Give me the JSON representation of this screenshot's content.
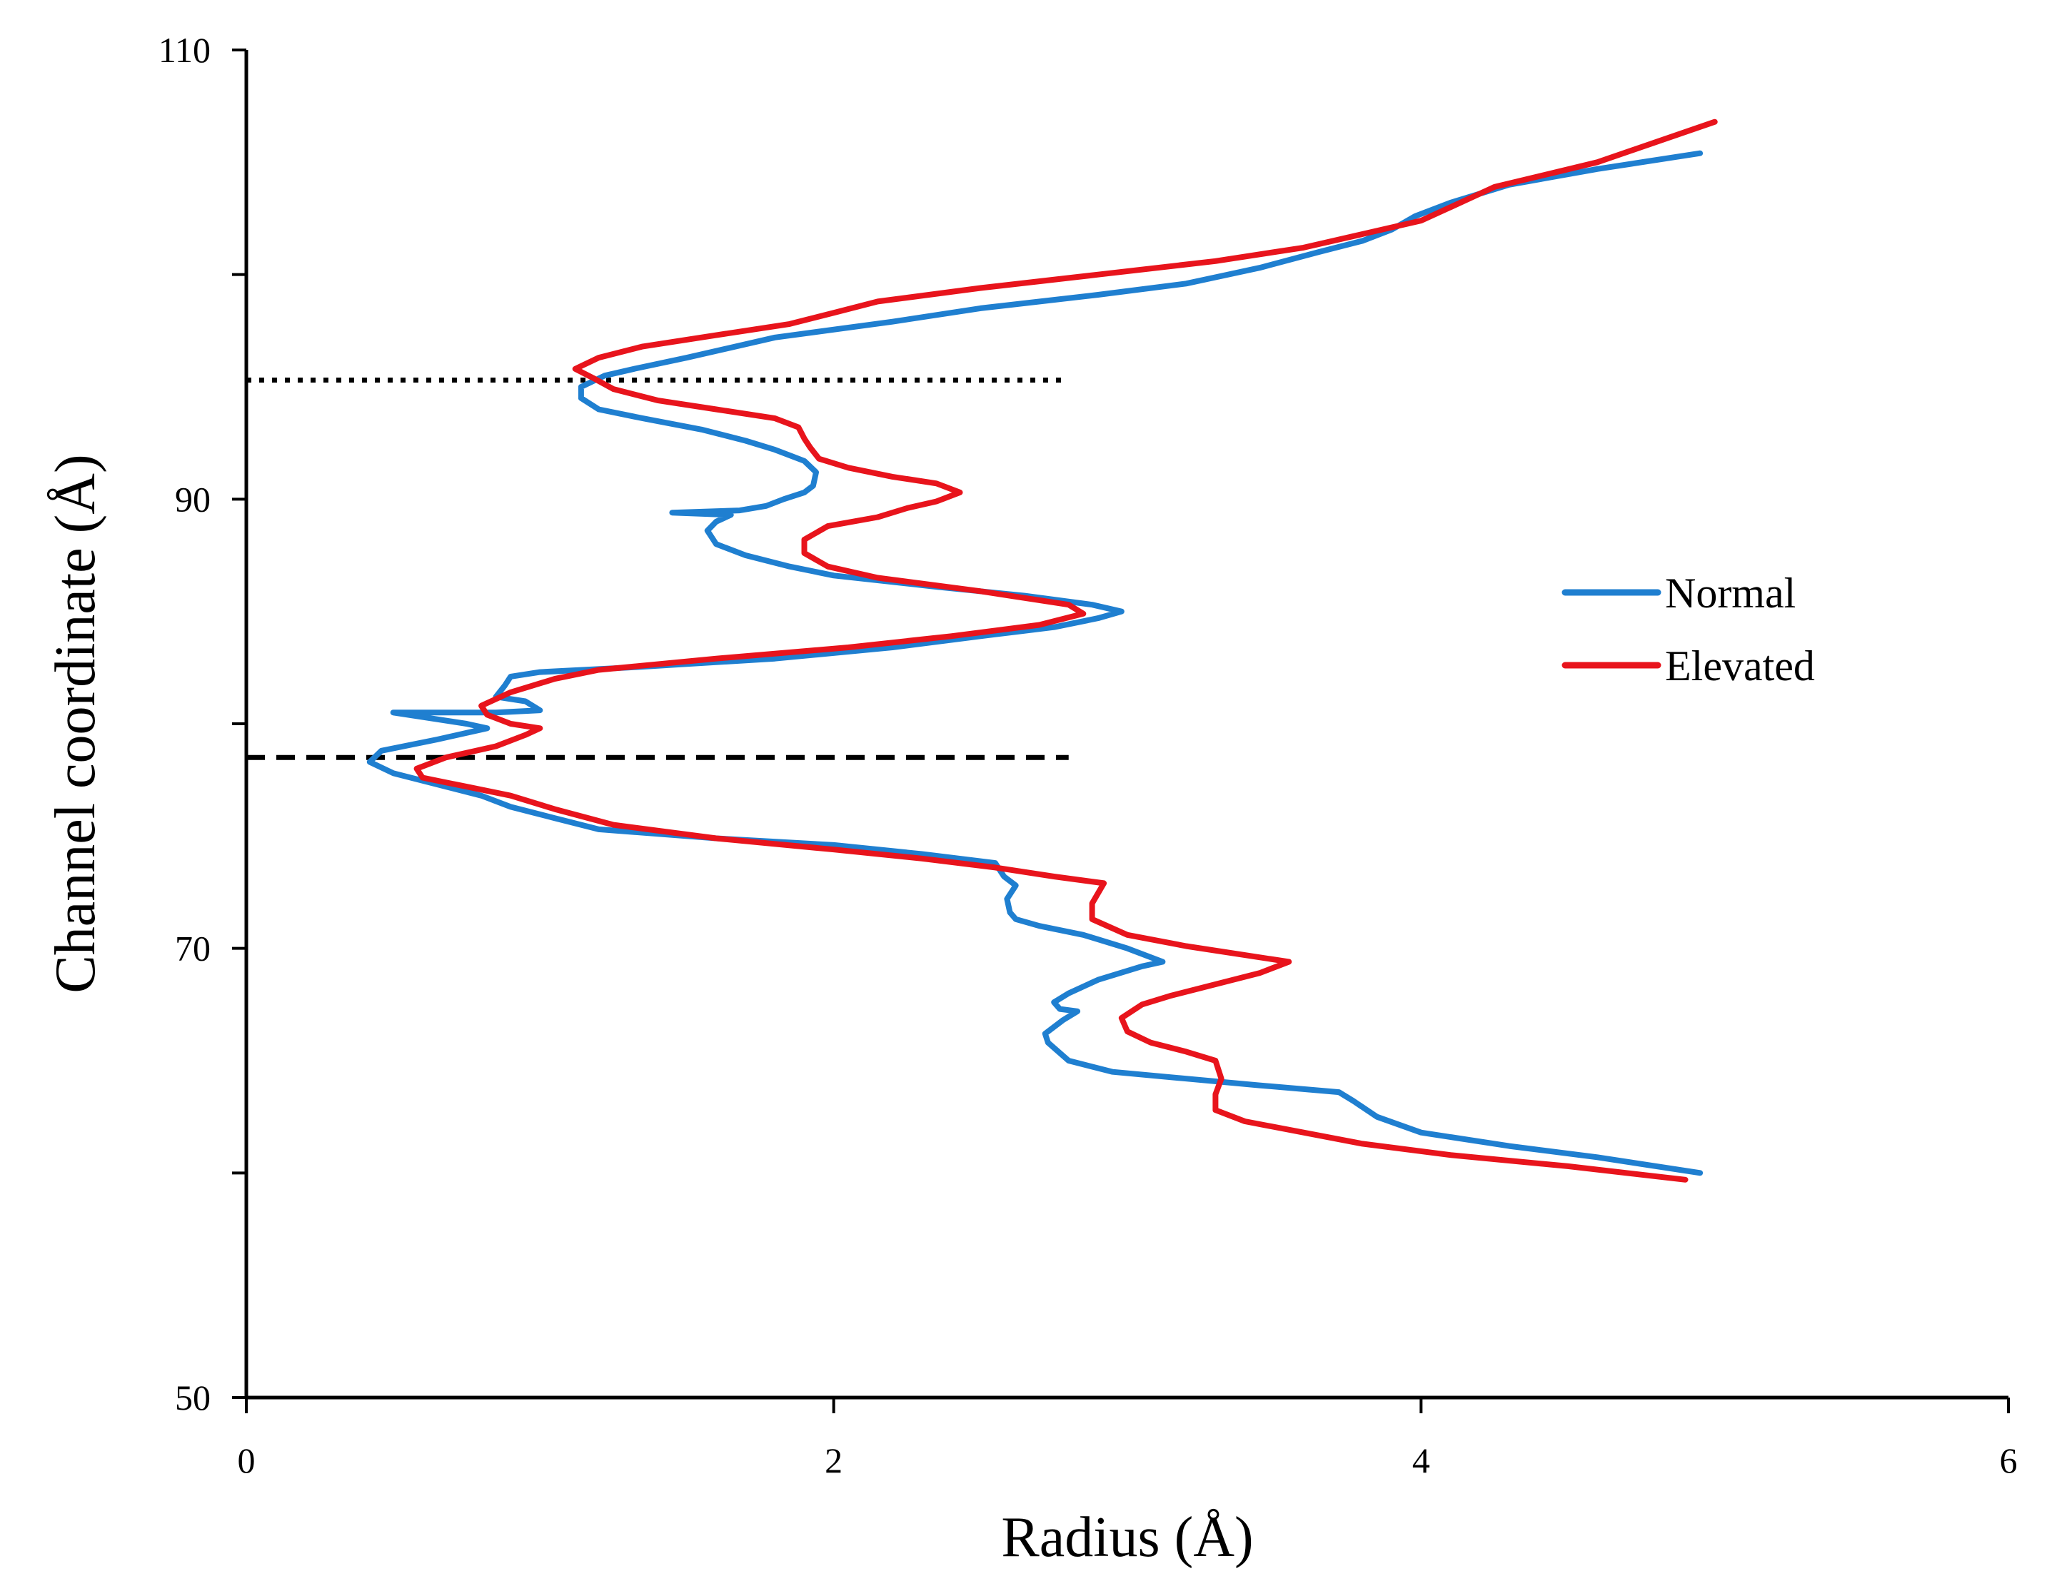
{
  "chart_data": {
    "type": "line",
    "title": "",
    "xlabel": "Radius (Å)",
    "ylabel": "Channel coordinate (Å)",
    "xlim": [
      0,
      6
    ],
    "ylim": [
      50,
      110
    ],
    "x_ticks": [
      0,
      2,
      4,
      6
    ],
    "y_ticks_labeled": [
      50,
      70,
      90,
      110
    ],
    "y_ticks_minor": [
      60,
      80,
      100
    ],
    "grid": false,
    "legend_position": "right",
    "reference_lines": [
      {
        "name": "dotted-reference-line",
        "style": "dotted",
        "y": 95.3,
        "x_range": [
          0,
          2.8
        ]
      },
      {
        "name": "dashed-reference-line",
        "style": "dashed",
        "y": 78.5,
        "x_range": [
          0,
          2.8
        ]
      }
    ],
    "series": [
      {
        "name": "Normal",
        "color": "#1f7fd0",
        "points": [
          [
            4.95,
            60.0
          ],
          [
            4.6,
            60.7
          ],
          [
            4.3,
            61.2
          ],
          [
            4.0,
            61.8
          ],
          [
            3.85,
            62.5
          ],
          [
            3.77,
            63.2
          ],
          [
            3.72,
            63.6
          ],
          [
            3.45,
            63.9
          ],
          [
            3.2,
            64.2
          ],
          [
            2.95,
            64.5
          ],
          [
            2.8,
            65.0
          ],
          [
            2.73,
            65.8
          ],
          [
            2.72,
            66.2
          ],
          [
            2.78,
            66.8
          ],
          [
            2.83,
            67.2
          ],
          [
            2.77,
            67.3
          ],
          [
            2.75,
            67.6
          ],
          [
            2.8,
            68.0
          ],
          [
            2.9,
            68.6
          ],
          [
            3.05,
            69.2
          ],
          [
            3.12,
            69.4
          ],
          [
            3.0,
            70.0
          ],
          [
            2.85,
            70.6
          ],
          [
            2.7,
            71.0
          ],
          [
            2.62,
            71.3
          ],
          [
            2.6,
            71.6
          ],
          [
            2.59,
            72.2
          ],
          [
            2.62,
            72.8
          ],
          [
            2.58,
            73.2
          ],
          [
            2.55,
            73.8
          ],
          [
            2.3,
            74.2
          ],
          [
            2.0,
            74.6
          ],
          [
            1.6,
            74.9
          ],
          [
            1.2,
            75.3
          ],
          [
            1.05,
            75.8
          ],
          [
            0.9,
            76.3
          ],
          [
            0.8,
            76.8
          ],
          [
            0.65,
            77.3
          ],
          [
            0.5,
            77.8
          ],
          [
            0.42,
            78.3
          ],
          [
            0.46,
            78.8
          ],
          [
            0.65,
            79.3
          ],
          [
            0.82,
            79.8
          ],
          [
            0.75,
            80.0
          ],
          [
            0.6,
            80.3
          ],
          [
            0.5,
            80.5
          ],
          [
            0.85,
            80.5
          ],
          [
            1.0,
            80.6
          ],
          [
            0.95,
            81.0
          ],
          [
            0.85,
            81.2
          ],
          [
            0.88,
            81.7
          ],
          [
            0.9,
            82.1
          ],
          [
            1.0,
            82.3
          ],
          [
            1.3,
            82.5
          ],
          [
            1.8,
            82.9
          ],
          [
            2.2,
            83.4
          ],
          [
            2.5,
            83.9
          ],
          [
            2.75,
            84.3
          ],
          [
            2.9,
            84.7
          ],
          [
            2.98,
            85.0
          ],
          [
            2.88,
            85.3
          ],
          [
            2.65,
            85.7
          ],
          [
            2.35,
            86.1
          ],
          [
            2.0,
            86.6
          ],
          [
            1.85,
            87.0
          ],
          [
            1.7,
            87.5
          ],
          [
            1.6,
            88.0
          ],
          [
            1.57,
            88.6
          ],
          [
            1.6,
            89.0
          ],
          [
            1.65,
            89.3
          ],
          [
            1.45,
            89.4
          ],
          [
            1.68,
            89.5
          ],
          [
            1.77,
            89.7
          ],
          [
            1.83,
            90.0
          ],
          [
            1.9,
            90.3
          ],
          [
            1.93,
            90.6
          ],
          [
            1.94,
            91.2
          ],
          [
            1.9,
            91.7
          ],
          [
            1.8,
            92.2
          ],
          [
            1.7,
            92.6
          ],
          [
            1.55,
            93.1
          ],
          [
            1.35,
            93.6
          ],
          [
            1.2,
            94.0
          ],
          [
            1.14,
            94.5
          ],
          [
            1.14,
            95.0
          ],
          [
            1.22,
            95.5
          ],
          [
            1.32,
            95.8
          ],
          [
            1.5,
            96.3
          ],
          [
            1.8,
            97.2
          ],
          [
            2.2,
            97.9
          ],
          [
            2.5,
            98.5
          ],
          [
            2.9,
            99.1
          ],
          [
            3.2,
            99.6
          ],
          [
            3.45,
            100.3
          ],
          [
            3.65,
            101.0
          ],
          [
            3.8,
            101.5
          ],
          [
            3.9,
            102.0
          ],
          [
            3.98,
            102.6
          ],
          [
            4.1,
            103.2
          ],
          [
            4.3,
            104.0
          ],
          [
            4.6,
            104.7
          ],
          [
            4.95,
            105.4
          ]
        ]
      },
      {
        "name": "Elevated",
        "color": "#e8141c",
        "points": [
          [
            4.9,
            59.7
          ],
          [
            4.5,
            60.3
          ],
          [
            4.1,
            60.8
          ],
          [
            3.8,
            61.3
          ],
          [
            3.6,
            61.8
          ],
          [
            3.4,
            62.3
          ],
          [
            3.3,
            62.8
          ],
          [
            3.3,
            63.5
          ],
          [
            3.32,
            64.2
          ],
          [
            3.3,
            65.0
          ],
          [
            3.2,
            65.4
          ],
          [
            3.08,
            65.8
          ],
          [
            3.0,
            66.3
          ],
          [
            2.98,
            66.9
          ],
          [
            3.05,
            67.5
          ],
          [
            3.15,
            67.9
          ],
          [
            3.3,
            68.4
          ],
          [
            3.45,
            68.9
          ],
          [
            3.55,
            69.4
          ],
          [
            3.4,
            69.7
          ],
          [
            3.2,
            70.1
          ],
          [
            3.0,
            70.6
          ],
          [
            2.88,
            71.3
          ],
          [
            2.88,
            72.0
          ],
          [
            2.92,
            72.9
          ],
          [
            2.75,
            73.2
          ],
          [
            2.55,
            73.6
          ],
          [
            2.3,
            74.0
          ],
          [
            2.0,
            74.4
          ],
          [
            1.6,
            74.9
          ],
          [
            1.25,
            75.5
          ],
          [
            1.05,
            76.2
          ],
          [
            0.9,
            76.8
          ],
          [
            0.75,
            77.2
          ],
          [
            0.6,
            77.6
          ],
          [
            0.58,
            78.0
          ],
          [
            0.68,
            78.5
          ],
          [
            0.85,
            79.0
          ],
          [
            0.95,
            79.5
          ],
          [
            1.0,
            79.8
          ],
          [
            0.9,
            80.0
          ],
          [
            0.82,
            80.4
          ],
          [
            0.8,
            80.8
          ],
          [
            0.9,
            81.4
          ],
          [
            1.05,
            82.0
          ],
          [
            1.2,
            82.4
          ],
          [
            1.6,
            82.9
          ],
          [
            2.05,
            83.4
          ],
          [
            2.4,
            83.9
          ],
          [
            2.7,
            84.4
          ],
          [
            2.85,
            84.9
          ],
          [
            2.8,
            85.3
          ],
          [
            2.5,
            85.9
          ],
          [
            2.15,
            86.5
          ],
          [
            1.98,
            87.0
          ],
          [
            1.9,
            87.6
          ],
          [
            1.9,
            88.2
          ],
          [
            1.98,
            88.8
          ],
          [
            2.15,
            89.2
          ],
          [
            2.25,
            89.6
          ],
          [
            2.35,
            89.9
          ],
          [
            2.43,
            90.3
          ],
          [
            2.35,
            90.7
          ],
          [
            2.2,
            91.0
          ],
          [
            2.05,
            91.4
          ],
          [
            1.95,
            91.8
          ],
          [
            1.92,
            92.3
          ],
          [
            1.9,
            92.7
          ],
          [
            1.88,
            93.2
          ],
          [
            1.8,
            93.6
          ],
          [
            1.6,
            94.0
          ],
          [
            1.4,
            94.4
          ],
          [
            1.25,
            94.9
          ],
          [
            1.18,
            95.4
          ],
          [
            1.12,
            95.8
          ],
          [
            1.2,
            96.3
          ],
          [
            1.35,
            96.8
          ],
          [
            1.6,
            97.3
          ],
          [
            1.85,
            97.8
          ],
          [
            2.0,
            98.3
          ],
          [
            2.15,
            98.8
          ],
          [
            2.5,
            99.4
          ],
          [
            2.9,
            100.0
          ],
          [
            3.3,
            100.6
          ],
          [
            3.6,
            101.2
          ],
          [
            3.8,
            101.8
          ],
          [
            4.0,
            102.4
          ],
          [
            4.1,
            103.0
          ],
          [
            4.25,
            103.9
          ],
          [
            4.6,
            105.0
          ],
          [
            5.0,
            106.8
          ]
        ]
      }
    ]
  }
}
